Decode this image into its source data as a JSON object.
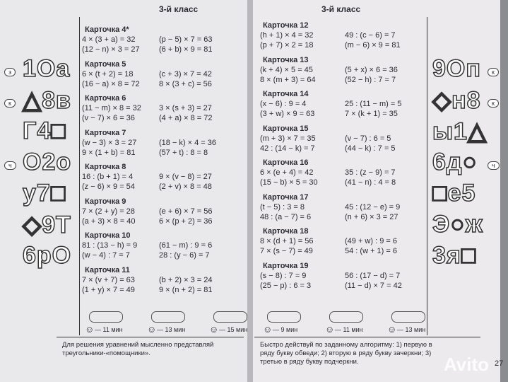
{
  "left_page": {
    "header": "3-й класс",
    "cards": [
      {
        "title": "Карточка 4*",
        "equations": [
          "4 × (3 + a) = 32",
          "(p − 5) × 7 = 63",
          "(12 − n) × 3 = 27",
          "(6 + b) × 9 = 81"
        ]
      },
      {
        "title": "Карточка 5",
        "equations": [
          "6 × (t + 2) = 18",
          "(c + 3) × 7 = 42",
          "(16 − a) × 8 = 72",
          "8 × (3 + c) = 56"
        ]
      },
      {
        "title": "Карточка 6",
        "equations": [
          "(11 − m) × 8 = 32",
          "3 × (s + 3) = 27",
          "(v − 7) × 6 = 36",
          "(4 + a) × 8 = 72"
        ]
      },
      {
        "title": "Карточка 7",
        "equations": [
          "(w − 3) × 3 = 27",
          "(18 − k) × 4 = 36",
          "9 × (1 + b) = 81",
          "(57 + t) : 8 = 8"
        ]
      },
      {
        "title": "Карточка 8",
        "equations": [
          "16 : (b + 1) = 4",
          "9 × (v − 8) = 27",
          "(z − 6) × 9 = 54",
          "(2 + v) × 8 = 48"
        ]
      },
      {
        "title": "Карточка 9",
        "equations": [
          "7 × (2 + y) = 28",
          "(e + 6) × 7 = 56",
          "(a + 3) × 8 = 40",
          "6 × (p + 2) = 36"
        ]
      },
      {
        "title": "Карточка 10",
        "equations": [
          "81 : (13 − h) = 9",
          "(61 − m) : 9 = 6",
          "(w − 4) : 7 = 7",
          "28 : (y − 6) = 7"
        ]
      },
      {
        "title": "Карточка 11",
        "equations": [
          "7 × (v + 7) = 63",
          "(b + 2) × 3 = 24",
          "(1 + y) × 7 = 49",
          "9 × (n + 2) = 81"
        ]
      }
    ],
    "times": [
      "— 11 мин",
      "— 13 мин",
      "— 15 мин"
    ],
    "footer": "Для решения уравнений мысленно представляй треугольники-«помощники».",
    "sidebar": [
      "1Оа",
      "△8в",
      "Г4□",
      "О2о",
      "у7□",
      "◇9Т",
      "6рО"
    ],
    "side_tags": [
      "з",
      "к",
      "ч"
    ]
  },
  "right_page": {
    "header": "3-й класс",
    "cards": [
      {
        "title": "Карточка 12",
        "equations": [
          "(h + 1) × 4 = 32",
          "49 : (c − 6) = 7",
          "(p + 7) × 2 = 18",
          "(m − 6) × 9 = 81"
        ]
      },
      {
        "title": "Карточка 13",
        "equations": [
          "(k + 4) × 5 = 45",
          "(5 + x) × 6 = 36",
          "8 × (m + 3) = 64",
          "(52 − h) : 7 = 7"
        ]
      },
      {
        "title": "Карточка 14",
        "equations": [
          "(x − 6) : 9 = 4",
          "25 : (11 − m) = 5",
          "(3 + w) × 9 = 63",
          "7 × (k + 1) = 35"
        ]
      },
      {
        "title": "Карточка 15",
        "equations": [
          "(m + 3) × 7 = 35",
          "(v − 7) : 6 = 5",
          "42 : (14 − k) = 7",
          "(44 − k) : 7 = 5"
        ]
      },
      {
        "title": "Карточка 16",
        "equations": [
          "6 × (e + 4) = 42",
          "35 : (z − 9) = 7",
          "(15 − b) × 5 = 30",
          "(41 − n) : 4 = 8"
        ]
      },
      {
        "title": "Карточка 17",
        "equations": [
          "(t − 5) : 3 = 8",
          "45 : (12 − e) = 9",
          "48 : (a − 7) = 6",
          "(n + 6) × 3 = 27"
        ]
      },
      {
        "title": "Карточка 18",
        "equations": [
          "8 × (d + 1) = 56",
          "(49 + w) : 9 = 6",
          "7 × (s − 7) = 49",
          "54 : (w + 1) = 6"
        ]
      },
      {
        "title": "Карточка 19",
        "equations": [
          "(s − 8) : 7 = 9",
          "56 : (17 − d) = 7",
          "(25 − p) : 6 = 3",
          "(11 − d) × 7 = 42"
        ]
      }
    ],
    "times": [
      "— 9 мин",
      "— 11 мин",
      "— 13 мин"
    ],
    "footer": "Быстро действуй по заданному алгоритму: 1) первую в ряду букву обведи; 2) вторую в ряду букву зачеркни; 3) третью в ряду букву подчеркни.",
    "sidebar": [
      "9Оп",
      "◇н8",
      "ы1△",
      "6д○",
      "□е5",
      "Э○ж",
      "3я□"
    ],
    "side_tags": [
      "к",
      "к",
      "ч"
    ],
    "page_number": "27"
  },
  "watermark": "Avito"
}
